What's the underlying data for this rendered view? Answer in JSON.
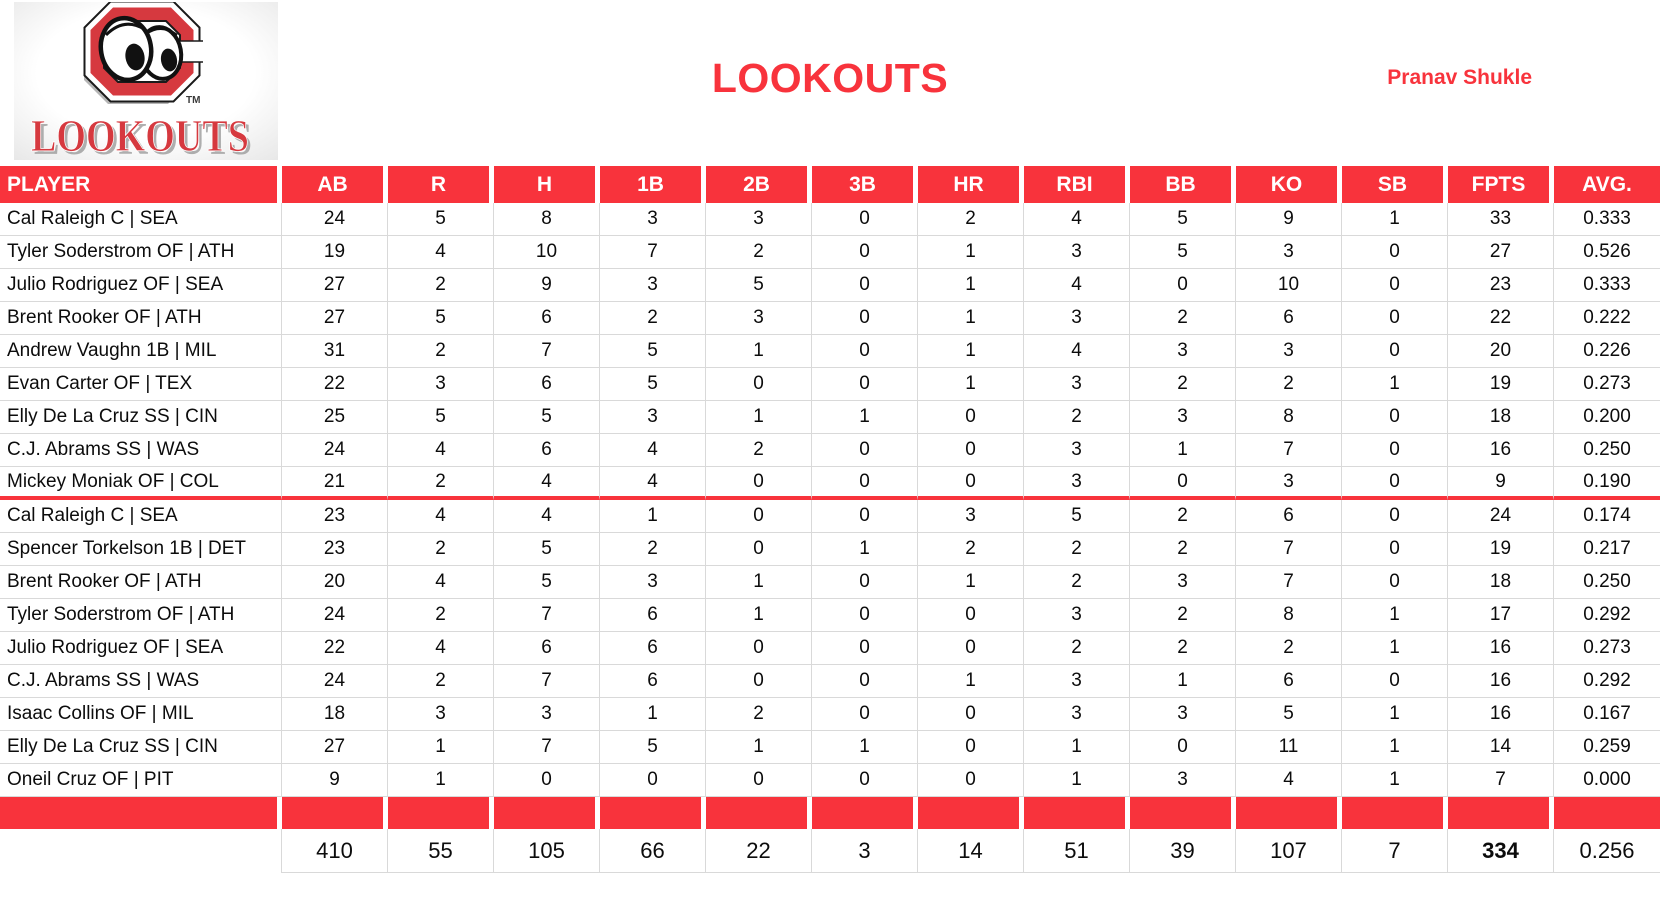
{
  "page": {
    "title": "LOOKOUTS",
    "owner": "Pranav Shukle"
  },
  "logo": {
    "wordmark": "LOOKOUTS",
    "tm": "TM"
  },
  "colors": {
    "table_red": "#F8333C",
    "logo_red": "#D6393F",
    "gridline": "#D9D9D9"
  },
  "table": {
    "columns": [
      "PLAYER",
      "AB",
      "R",
      "H",
      "1B",
      "2B",
      "3B",
      "HR",
      "RBI",
      "BB",
      "KO",
      "SB",
      "FPTS",
      "AVG."
    ],
    "red_divider_after_row_index": 8,
    "rows": [
      {
        "player": "Cal Raleigh C | SEA",
        "stats": [
          24,
          5,
          8,
          3,
          3,
          0,
          2,
          4,
          5,
          9,
          1,
          33,
          "0.333"
        ]
      },
      {
        "player": "Tyler Soderstrom OF | ATH",
        "stats": [
          19,
          4,
          10,
          7,
          2,
          0,
          1,
          3,
          5,
          3,
          0,
          27,
          "0.526"
        ]
      },
      {
        "player": "Julio Rodriguez OF | SEA",
        "stats": [
          27,
          2,
          9,
          3,
          5,
          0,
          1,
          4,
          0,
          10,
          0,
          23,
          "0.333"
        ]
      },
      {
        "player": "Brent Rooker OF | ATH",
        "stats": [
          27,
          5,
          6,
          2,
          3,
          0,
          1,
          3,
          2,
          6,
          0,
          22,
          "0.222"
        ]
      },
      {
        "player": "Andrew Vaughn 1B | MIL",
        "stats": [
          31,
          2,
          7,
          5,
          1,
          0,
          1,
          4,
          3,
          3,
          0,
          20,
          "0.226"
        ]
      },
      {
        "player": "Evan Carter OF | TEX",
        "stats": [
          22,
          3,
          6,
          5,
          0,
          0,
          1,
          3,
          2,
          2,
          1,
          19,
          "0.273"
        ]
      },
      {
        "player": "Elly De La Cruz SS | CIN",
        "stats": [
          25,
          5,
          5,
          3,
          1,
          1,
          0,
          2,
          3,
          8,
          0,
          18,
          "0.200"
        ]
      },
      {
        "player": "C.J. Abrams SS | WAS",
        "stats": [
          24,
          4,
          6,
          4,
          2,
          0,
          0,
          3,
          1,
          7,
          0,
          16,
          "0.250"
        ]
      },
      {
        "player": "Mickey Moniak OF | COL",
        "stats": [
          21,
          2,
          4,
          4,
          0,
          0,
          0,
          3,
          0,
          3,
          0,
          9,
          "0.190"
        ]
      },
      {
        "player": "Cal Raleigh C | SEA",
        "stats": [
          23,
          4,
          4,
          1,
          0,
          0,
          3,
          5,
          2,
          6,
          0,
          24,
          "0.174"
        ]
      },
      {
        "player": "Spencer Torkelson 1B | DET",
        "stats": [
          23,
          2,
          5,
          2,
          0,
          1,
          2,
          2,
          2,
          7,
          0,
          19,
          "0.217"
        ]
      },
      {
        "player": "Brent Rooker OF | ATH",
        "stats": [
          20,
          4,
          5,
          3,
          1,
          0,
          1,
          2,
          3,
          7,
          0,
          18,
          "0.250"
        ]
      },
      {
        "player": "Tyler Soderstrom OF | ATH",
        "stats": [
          24,
          2,
          7,
          6,
          1,
          0,
          0,
          3,
          2,
          8,
          1,
          17,
          "0.292"
        ]
      },
      {
        "player": "Julio Rodriguez OF | SEA",
        "stats": [
          22,
          4,
          6,
          6,
          0,
          0,
          0,
          2,
          2,
          2,
          1,
          16,
          "0.273"
        ]
      },
      {
        "player": "C.J. Abrams SS | WAS",
        "stats": [
          24,
          2,
          7,
          6,
          0,
          0,
          1,
          3,
          1,
          6,
          0,
          16,
          "0.292"
        ]
      },
      {
        "player": "Isaac Collins OF | MIL",
        "stats": [
          18,
          3,
          3,
          1,
          2,
          0,
          0,
          3,
          3,
          5,
          1,
          16,
          "0.167"
        ]
      },
      {
        "player": "Elly De La Cruz SS | CIN",
        "stats": [
          27,
          1,
          7,
          5,
          1,
          1,
          0,
          1,
          0,
          11,
          1,
          14,
          "0.259"
        ]
      },
      {
        "player": "Oneil Cruz OF | PIT",
        "stats": [
          9,
          1,
          0,
          0,
          0,
          0,
          0,
          1,
          3,
          4,
          1,
          7,
          "0.000"
        ]
      }
    ],
    "totals": {
      "stats": [
        "410",
        "55",
        "105",
        "66",
        "22",
        "3",
        "14",
        "51",
        "39",
        "107",
        "7",
        "334",
        "0.256"
      ],
      "bold_stat_index": 11
    }
  }
}
